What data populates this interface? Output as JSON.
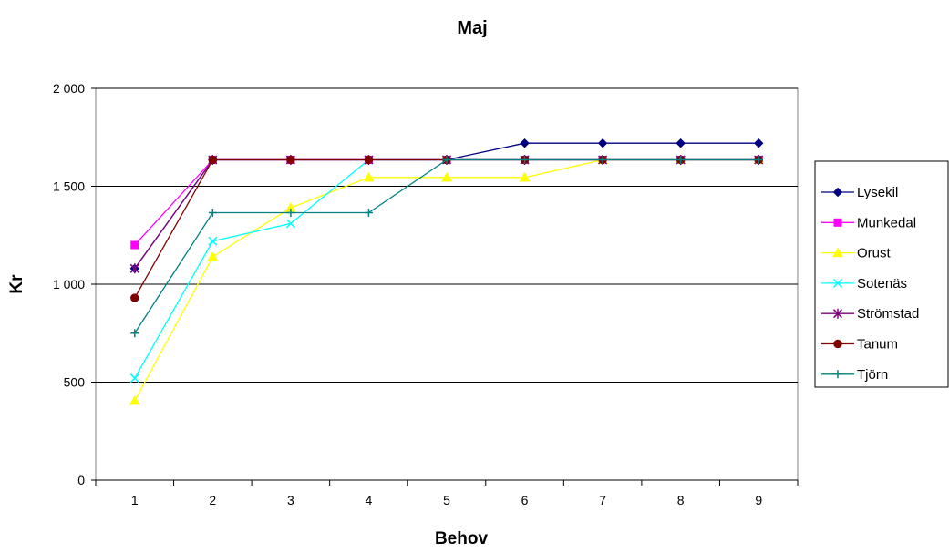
{
  "chart_data": {
    "type": "line",
    "title": "Maj",
    "xlabel": "Behov",
    "ylabel": "Kr",
    "x": [
      1,
      2,
      3,
      4,
      5,
      6,
      7,
      8,
      9
    ],
    "xticks": [
      "1",
      "2",
      "3",
      "4",
      "5",
      "6",
      "7",
      "8",
      "9"
    ],
    "ylim": [
      0,
      2000
    ],
    "yticks": [
      0,
      500,
      1000,
      1500,
      2000
    ],
    "ytick_labels": [
      "0",
      "500",
      "1 000",
      "1 500",
      "2 000"
    ],
    "grid": "horizontal",
    "legend_position": "right",
    "series": [
      {
        "name": "Lysekil",
        "color": "#000080",
        "marker": "diamond",
        "values": [
          1080,
          1635,
          1635,
          1635,
          1635,
          1720,
          1720,
          1720,
          1720
        ]
      },
      {
        "name": "Munkedal",
        "color": "#FF00FF",
        "marker": "square",
        "values": [
          1200,
          1635,
          1635,
          1635,
          1635,
          1635,
          1635,
          1635,
          1635
        ]
      },
      {
        "name": "Orust",
        "color": "#FFFF00",
        "marker": "triangle",
        "values": [
          405,
          1140,
          1390,
          1545,
          1545,
          1545,
          1635,
          1635,
          1635
        ]
      },
      {
        "name": "Sotenäs",
        "color": "#00FFFF",
        "marker": "x",
        "values": [
          520,
          1220,
          1310,
          1635,
          1635,
          1635,
          1635,
          1635,
          1635
        ]
      },
      {
        "name": "Strömstad",
        "color": "#800080",
        "marker": "star",
        "values": [
          1080,
          1635,
          1635,
          1635,
          1635,
          1635,
          1635,
          1635,
          1635
        ]
      },
      {
        "name": "Tanum",
        "color": "#800000",
        "marker": "circle",
        "values": [
          930,
          1635,
          1635,
          1635,
          1635,
          1635,
          1635,
          1635,
          1635
        ]
      },
      {
        "name": "Tjörn",
        "color": "#008080",
        "marker": "plus",
        "values": [
          750,
          1365,
          1365,
          1365,
          1635,
          1635,
          1635,
          1635,
          1635
        ]
      }
    ]
  }
}
